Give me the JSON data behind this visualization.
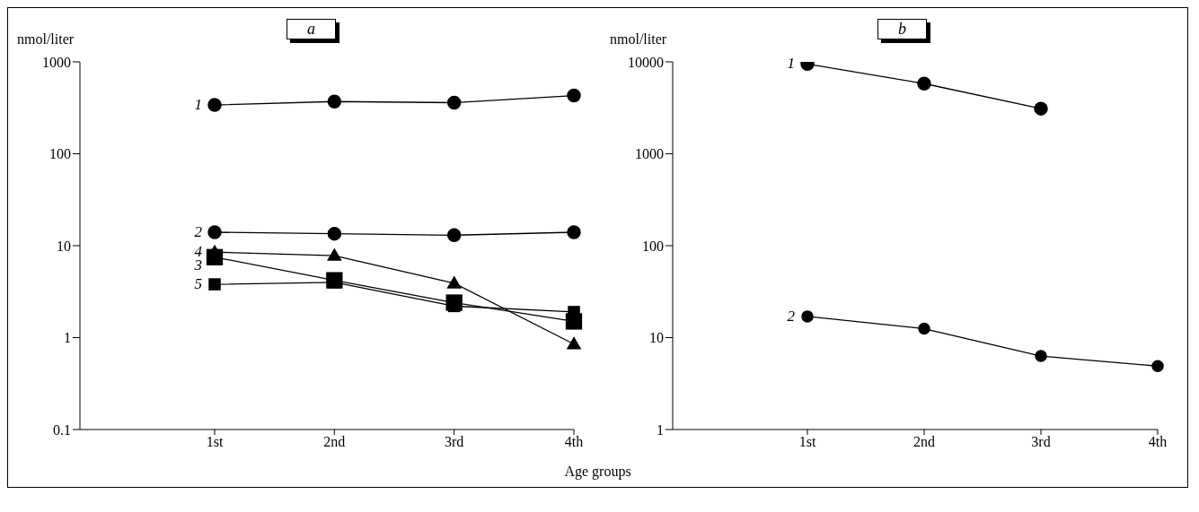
{
  "chart_data": [
    {
      "type": "line",
      "title": "a",
      "ylabel": "nmol/liter",
      "xlabel": "Age groups",
      "categories": [
        "1st",
        "2nd",
        "3rd",
        "4th"
      ],
      "log": "y",
      "ylim": [
        0.1,
        1000
      ],
      "yticks": [
        0.1,
        1,
        10,
        100,
        1000
      ],
      "grid": false,
      "legend": false,
      "series": [
        {
          "name": "1",
          "color": "#000000",
          "marker": "circle",
          "values": [
            340,
            370,
            360,
            430
          ]
        },
        {
          "name": "2",
          "color": "#000000",
          "marker": "circle",
          "values": [
            14,
            13.5,
            13,
            14
          ]
        },
        {
          "name": "3",
          "color": "#000000",
          "marker": "square",
          "values": [
            7.5,
            4.2,
            2.4,
            1.5
          ]
        },
        {
          "name": "4",
          "color": "#000000",
          "marker": "triangle",
          "values": [
            8.5,
            7.8,
            3.9,
            0.85
          ]
        },
        {
          "name": "5",
          "color": "#000000",
          "marker": "square",
          "values": [
            3.8,
            4.0,
            2.2,
            1.9
          ]
        }
      ]
    },
    {
      "type": "line",
      "title": "b",
      "ylabel": "nmol/liter",
      "categories": [
        "1st",
        "2nd",
        "3rd",
        "4th"
      ],
      "log": "y",
      "ylim": [
        1,
        10000
      ],
      "yticks": [
        1,
        10,
        100,
        1000,
        10000
      ],
      "grid": false,
      "legend": false,
      "series": [
        {
          "name": "1",
          "color": "#000000",
          "marker": "circle",
          "values": [
            9500,
            5800,
            3100,
            null
          ]
        },
        {
          "name": "2",
          "color": "#000000",
          "marker": "circle",
          "values": [
            17,
            12.5,
            6.3,
            4.9
          ]
        }
      ]
    }
  ]
}
